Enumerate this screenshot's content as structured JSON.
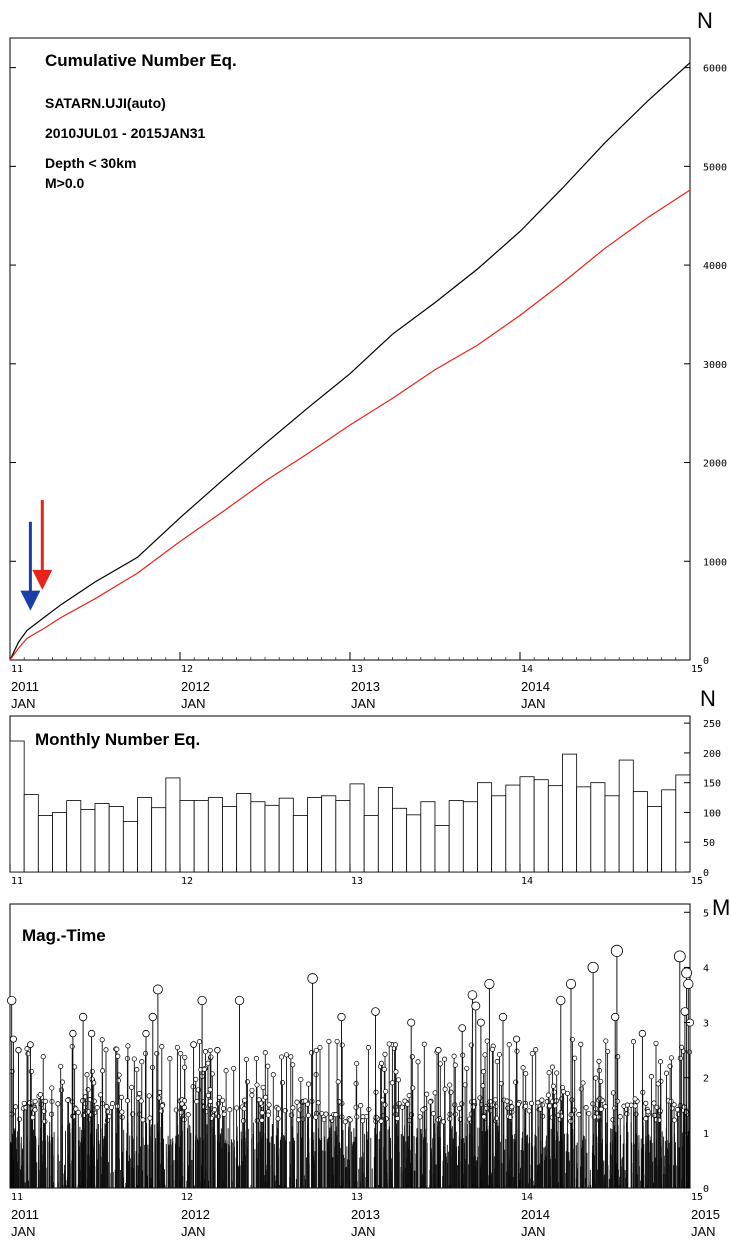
{
  "cumulative": {
    "title": "Cumulative Number Eq.",
    "network": "SATARN.UJI(auto)",
    "period": "2010JUL01 - 2015JAN31",
    "depth": "Depth < 30km",
    "magnitude": "M>0.0",
    "unit": "N",
    "y_ticks": [
      "0",
      "1000",
      "2000",
      "3000",
      "4000",
      "5000",
      "6000"
    ],
    "x_ticks": [
      "11",
      "12",
      "13",
      "14",
      "15"
    ],
    "x_year_labels": [
      "2011",
      "2012",
      "2013",
      "2014"
    ],
    "x_month_labels": [
      "JAN",
      "JAN",
      "JAN",
      "JAN"
    ],
    "colors": {
      "black": "#000000",
      "red": "#e8231b",
      "blue_arrow": "#1a3ea8",
      "red_arrow": "#e8231b"
    }
  },
  "monthly": {
    "title": "Monthly Number Eq.",
    "unit": "N",
    "y_ticks": [
      "0",
      "50",
      "100",
      "150",
      "200",
      "250"
    ],
    "x_ticks": [
      "11",
      "12",
      "13",
      "14",
      "15"
    ]
  },
  "magtime": {
    "title": "Mag.-Time",
    "unit": "M",
    "y_ticks": [
      "0",
      "1",
      "2",
      "3",
      "4",
      "5"
    ],
    "x_ticks": [
      "11",
      "12",
      "13",
      "14",
      "15"
    ],
    "x_year_labels": [
      "2011",
      "2012",
      "2013",
      "2014",
      "2015"
    ],
    "x_month_labels": [
      "JAN",
      "JAN",
      "JAN",
      "JAN",
      "JAN"
    ]
  },
  "chart_data": [
    {
      "type": "line",
      "title": "Cumulative Number Eq.",
      "ylabel": "N",
      "xlim": [
        2011.0,
        2015.0
      ],
      "ylim": [
        0,
        6000
      ],
      "series": [
        {
          "color": "#000000",
          "x": [
            2011.0,
            2011.05,
            2011.1,
            2011.2,
            2011.3,
            2011.5,
            2011.75,
            2012.0,
            2012.25,
            2012.5,
            2012.75,
            2013.0,
            2013.25,
            2013.5,
            2013.75,
            2014.0,
            2014.25,
            2014.5,
            2014.75,
            2015.0
          ],
          "y": [
            0,
            180,
            300,
            430,
            560,
            790,
            1040,
            1440,
            1820,
            2190,
            2550,
            2900,
            3300,
            3620,
            3960,
            4340,
            4780,
            5240,
            5660,
            6050
          ]
        },
        {
          "color": "#e8231b",
          "x": [
            2011.0,
            2011.05,
            2011.1,
            2011.2,
            2011.3,
            2011.5,
            2011.75,
            2012.0,
            2012.25,
            2012.5,
            2012.75,
            2013.0,
            2013.25,
            2013.5,
            2013.75,
            2014.0,
            2014.25,
            2014.5,
            2014.75,
            2015.0
          ],
          "y": [
            0,
            120,
            220,
            320,
            430,
            620,
            880,
            1200,
            1500,
            1810,
            2090,
            2380,
            2650,
            2940,
            3190,
            3490,
            3820,
            4170,
            4480,
            4760
          ]
        }
      ],
      "annotations": [
        {
          "type": "arrow",
          "color": "#1a3ea8",
          "x": 2011.12,
          "y_from": 1400,
          "y_to": 520
        },
        {
          "type": "arrow",
          "color": "#e8231b",
          "x": 2011.19,
          "y_from": 1620,
          "y_to": 730
        }
      ]
    },
    {
      "type": "bar",
      "title": "Monthly Number Eq.",
      "ylabel": "N",
      "xlim": [
        2011.0,
        2015.0
      ],
      "ylim": [
        0,
        250
      ],
      "x_start": 2011.0,
      "x_step": 0.08333,
      "values": [
        220,
        130,
        95,
        100,
        120,
        105,
        115,
        110,
        85,
        125,
        108,
        158,
        120,
        120,
        125,
        110,
        132,
        118,
        112,
        124,
        95,
        125,
        128,
        120,
        148,
        95,
        142,
        107,
        96,
        118,
        78,
        120,
        118,
        150,
        128,
        146,
        160,
        155,
        145,
        198,
        143,
        150,
        128,
        188,
        135,
        110,
        138,
        163,
        170
      ]
    },
    {
      "type": "scatter",
      "title": "Mag.-Time",
      "ylabel": "M",
      "xlim": [
        2011.0,
        2015.0
      ],
      "ylim": [
        0,
        5
      ],
      "note": "Each event drawn as a vertical stem from 0 to its magnitude with a circle marker; larger events listed, background events are dense below M2.",
      "large_events": [
        {
          "x": 2011.01,
          "y": 3.4
        },
        {
          "x": 2011.02,
          "y": 2.7
        },
        {
          "x": 2011.05,
          "y": 2.5
        },
        {
          "x": 2011.12,
          "y": 2.6
        },
        {
          "x": 2011.43,
          "y": 3.1
        },
        {
          "x": 2011.48,
          "y": 2.8
        },
        {
          "x": 2011.37,
          "y": 2.8
        },
        {
          "x": 2011.87,
          "y": 3.6
        },
        {
          "x": 2011.84,
          "y": 3.1
        },
        {
          "x": 2011.8,
          "y": 2.8
        },
        {
          "x": 2012.13,
          "y": 3.4
        },
        {
          "x": 2012.35,
          "y": 3.4
        },
        {
          "x": 2012.08,
          "y": 2.6
        },
        {
          "x": 2012.22,
          "y": 2.5
        },
        {
          "x": 2012.78,
          "y": 3.8
        },
        {
          "x": 2012.95,
          "y": 3.1
        },
        {
          "x": 2013.15,
          "y": 3.2
        },
        {
          "x": 2013.36,
          "y": 3.0
        },
        {
          "x": 2013.52,
          "y": 2.5
        },
        {
          "x": 2013.66,
          "y": 2.9
        },
        {
          "x": 2013.72,
          "y": 3.5
        },
        {
          "x": 2013.74,
          "y": 3.3
        },
        {
          "x": 2013.77,
          "y": 3.0
        },
        {
          "x": 2013.82,
          "y": 3.7
        },
        {
          "x": 2013.9,
          "y": 3.1
        },
        {
          "x": 2013.98,
          "y": 2.7
        },
        {
          "x": 2014.24,
          "y": 3.4
        },
        {
          "x": 2014.3,
          "y": 3.7
        },
        {
          "x": 2014.43,
          "y": 4.0
        },
        {
          "x": 2014.57,
          "y": 4.3
        },
        {
          "x": 2014.56,
          "y": 3.1
        },
        {
          "x": 2014.72,
          "y": 2.8
        },
        {
          "x": 2014.94,
          "y": 4.2
        },
        {
          "x": 2014.98,
          "y": 3.9
        },
        {
          "x": 2014.99,
          "y": 3.7
        },
        {
          "x": 2014.97,
          "y": 3.2
        },
        {
          "x": 2015.0,
          "y": 3.0
        }
      ]
    }
  ]
}
